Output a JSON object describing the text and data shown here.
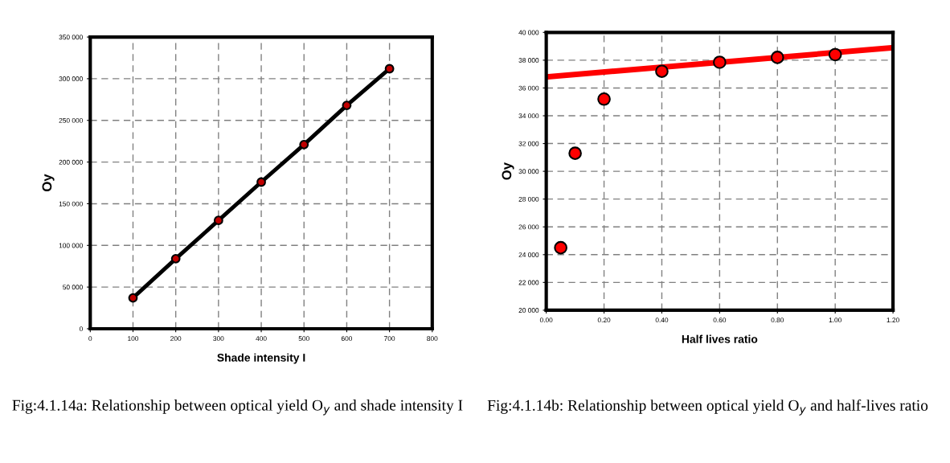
{
  "chart_data": [
    {
      "type": "line",
      "xlabel": "Shade intensity I",
      "ylabel": "Oy",
      "x": [
        100,
        200,
        300,
        400,
        500,
        600,
        700
      ],
      "series": [
        {
          "type": "line",
          "color": "#000000",
          "values": [
            37000,
            84000,
            130000,
            176000,
            221000,
            268000,
            312000
          ]
        }
      ],
      "marker": "circle",
      "line_style": "solid",
      "grid": true,
      "xlim": [
        0,
        800
      ],
      "xticks": [
        0,
        100,
        200,
        300,
        400,
        500,
        600,
        700,
        800
      ],
      "ylim": [
        0,
        350000
      ],
      "yticks": [
        0,
        {
          "value": 50000,
          "label": "50 000"
        },
        {
          "value": 100000,
          "label": "100 000"
        },
        {
          "value": 150000,
          "label": "150 000"
        },
        {
          "value": 200000,
          "label": "200 000"
        },
        {
          "value": 250000,
          "label": "250 000"
        },
        {
          "value": 300000,
          "label": "300 000"
        },
        {
          "value": 350000,
          "label": "350 000"
        }
      ],
      "annotations": [
        "Fig:4.1.14a: Relationship between optical yield O$_{y}$ and shade intensity I"
      ]
    },
    {
      "type": "scatter",
      "xlabel": "Half lives ratio",
      "ylabel": "Oy",
      "x": [
        0.05,
        0.1,
        0.2,
        0.4,
        0.6,
        0.8,
        1.0
      ],
      "series": [
        {
          "type": "scatter",
          "color": "#ff0000",
          "values": [
            24500,
            31300,
            35200,
            37200,
            37850,
            38200,
            38400
          ]
        },
        {
          "type": "line",
          "color": "#ff0000",
          "marker": "none",
          "x": [
            0,
            1.2
          ],
          "values": [
            36800,
            38900
          ]
        }
      ],
      "marker": "circle",
      "grid": true,
      "xlim": [
        0,
        1.2
      ],
      "xticks": [
        {
          "value": 0,
          "label": "0.00"
        },
        {
          "value": 0.2,
          "label": "0.20"
        },
        {
          "value": 0.4,
          "label": "0.40"
        },
        {
          "value": 0.6,
          "label": "0.60"
        },
        {
          "value": 0.8,
          "label": "0.80"
        },
        {
          "value": 1.0,
          "label": "1.00"
        },
        {
          "value": 1.2,
          "label": "1.20"
        }
      ],
      "ylim": [
        20000,
        40000
      ],
      "yticks": [
        {
          "value": 20000,
          "label": "20 000"
        },
        {
          "value": 22000,
          "label": "22 000"
        },
        {
          "value": 24000,
          "label": "24 000"
        },
        {
          "value": 26000,
          "label": "26 000"
        },
        {
          "value": 28000,
          "label": "28 000"
        },
        {
          "value": 30000,
          "label": "30 000"
        },
        {
          "value": 32000,
          "label": "32 000"
        },
        {
          "value": 34000,
          "label": "34 000"
        },
        {
          "value": 36000,
          "label": "36 000"
        },
        {
          "value": 38000,
          "label": "38 000"
        },
        {
          "value": 40000,
          "label": "40 000"
        }
      ],
      "annotations": [
        "Fig:4.1.14b: Relationship between optical yield O$_{y}$ and half-lives ratio"
      ]
    }
  ]
}
